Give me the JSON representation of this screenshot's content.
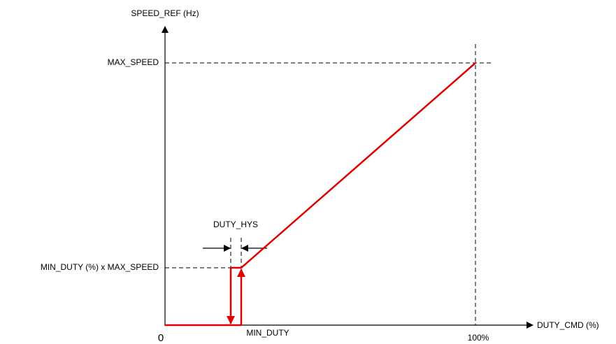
{
  "y_axis_label": "SPEED_REF (Hz)",
  "x_axis_label": "DUTY_CMD (%)",
  "levels": {
    "max_speed": "MAX_SPEED",
    "min_speed": "MIN_DUTY (%) x MAX_SPEED"
  },
  "hysteresis_label": "DUTY_HYS",
  "x_labels": {
    "origin": "0",
    "min_duty": "MIN_DUTY",
    "full": "100%"
  }
}
